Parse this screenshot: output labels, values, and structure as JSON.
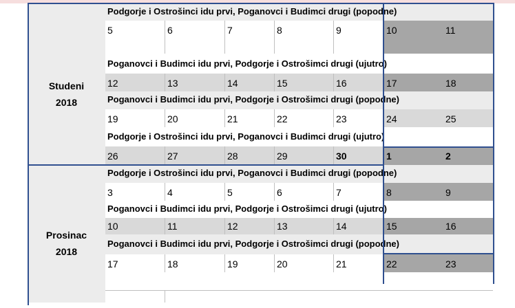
{
  "months": [
    {
      "label_line1": "Studeni",
      "label_line2": "2018",
      "rows": [
        {
          "banner": "Podgorje i Ostrošinci idu prvi, Poganovci i Budimci drugi (popodne)"
        },
        {
          "days": [
            "5",
            "6",
            "7",
            "8",
            "9",
            "10",
            "11"
          ]
        },
        {
          "banner": "Poganovci i Budimci idu prvi, Podgorje i Ostrošimci drugi (ujutro)"
        },
        {
          "days": [
            "12",
            "13",
            "14",
            "15",
            "16",
            "17",
            "18"
          ]
        },
        {
          "banner": "Poganovci i Budimci idu prvi, Podgorje i Ostrošimci drugi (popodne)"
        },
        {
          "days": [
            "19",
            "20",
            "21",
            "22",
            "23",
            "24",
            "25"
          ]
        },
        {
          "banner": "Podgorje i Ostrošinci idu prvi, Poganovci i Budimci drugi (ujutro)"
        },
        {
          "days": [
            "26",
            "27",
            "28",
            "29",
            "30",
            "1",
            "2"
          ]
        }
      ]
    },
    {
      "label_line1": "Prosinac",
      "label_line2": "2018",
      "rows": [
        {
          "banner": "Podgorje i Ostrošinci idu prvi, Poganovci i Budimci drugi (popodne)"
        },
        {
          "days": [
            "3",
            "4",
            "5",
            "6",
            "7",
            "8",
            "9"
          ]
        },
        {
          "banner": "Poganovci i Budimci idu prvi, Podgorje i Ostrošimci drugi (ujutro)"
        },
        {
          "days": [
            "10",
            "11",
            "12",
            "13",
            "14",
            "15",
            "16"
          ]
        },
        {
          "banner": "Poganovci i Budimci idu prvi, Podgorje i Ostrošimci drugi (popodne)"
        },
        {
          "days": [
            "17",
            "18",
            "19",
            "20",
            "21",
            "22",
            "23"
          ]
        }
      ]
    }
  ],
  "top_banner": "Podgorje i Ostrošinci idu prvi, Poganovci i Budimci drugi (popodne)"
}
